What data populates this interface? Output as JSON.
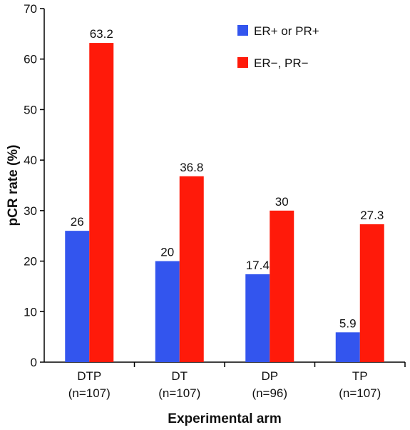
{
  "chart_data": {
    "type": "bar",
    "categories": [
      "DTP",
      "DT",
      "DP",
      "TP"
    ],
    "category_sublabels": [
      "(n=107)",
      "(n=107)",
      "(n=96)",
      "(n=107)"
    ],
    "series": [
      {
        "name": "ER+ or PR+",
        "values": [
          26,
          20,
          17.4,
          5.9
        ],
        "color": "#3355ee",
        "labels": [
          "26",
          "20",
          "17.4",
          "5.9"
        ]
      },
      {
        "name": "ER−, PR−",
        "values": [
          63.2,
          36.8,
          30,
          27.3
        ],
        "color": "#ff1a0a",
        "labels": [
          "63.2",
          "36.8",
          "30",
          "27.3"
        ]
      }
    ],
    "xlabel": "Experimental arm",
    "ylabel": "pCR rate (%)",
    "ylim": [
      0,
      70
    ],
    "yticks": [
      0,
      10,
      20,
      30,
      40,
      50,
      60,
      70
    ],
    "grid": false,
    "legend_position": "top-right"
  }
}
